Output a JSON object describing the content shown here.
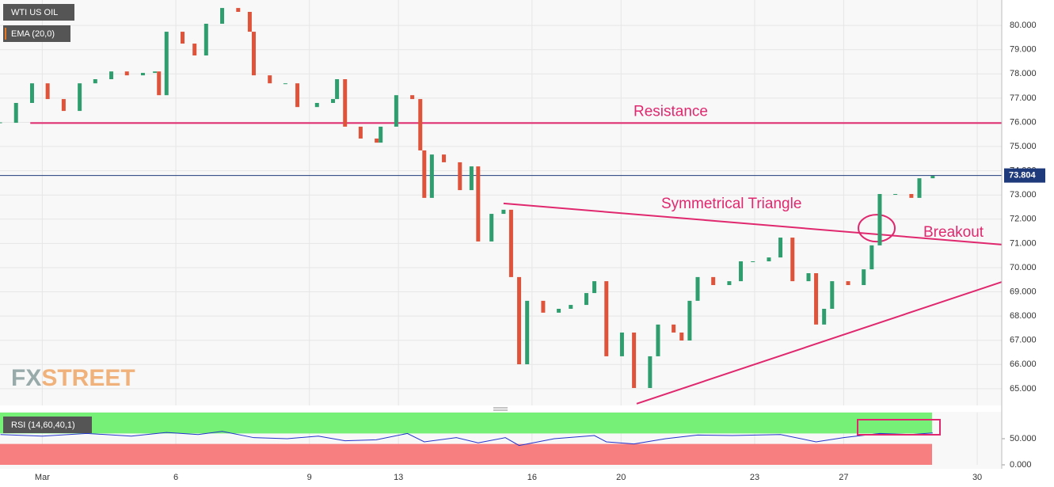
{
  "chart_data": {
    "type": "candlestick",
    "symbol": "WTI US OIL",
    "indicator": "EMA (20,0)",
    "brand": [
      "FX",
      "STREET"
    ],
    "x": [
      -0.94,
      -0.59,
      -0.23,
      0.12,
      0.48,
      0.84,
      1.19,
      1.55,
      1.9,
      2.26,
      2.53,
      2.62,
      2.79,
      3.15,
      3.42,
      3.68,
      4.04,
      4.4,
      4.66,
      4.75,
      5.11,
      5.46,
      5.73,
      6.17,
      6.53,
      6.62,
      6.8,
      7.15,
      7.51,
      7.6,
      7.95,
      8.31,
      8.49,
      8.58,
      8.75,
      9.02,
      9.38,
      9.64,
      9.79,
      10.09,
      10.36,
      10.53,
      10.71,
      10.89,
      11.25,
      11.6,
      11.87,
      12.22,
      12.4,
      12.67,
      13.02,
      13.29,
      13.65,
      13.83,
      14.18,
      14.36,
      14.54,
      14.72,
      15.07,
      15.43,
      15.69,
      15.96,
      16.32,
      16.58,
      16.85,
      17.21,
      17.38,
      17.56,
      17.74,
      18.1,
      18.45,
      18.63,
      18.81,
      19.16,
      19.52,
      19.7,
      20.0
    ],
    "close": [
      75.98,
      76.8,
      77.61,
      76.96,
      76.47,
      77.61,
      77.78,
      78.1,
      77.94,
      78.04,
      78.1,
      77.12,
      79.74,
      79.25,
      78.76,
      80.07,
      80.72,
      80.56,
      79.74,
      77.94,
      77.61,
      77.61,
      76.63,
      76.8,
      76.96,
      77.78,
      75.82,
      75.33,
      75.16,
      75.82,
      77.12,
      76.96,
      74.84,
      72.88,
      74.67,
      74.35,
      73.2,
      74.18,
      71.08,
      72.22,
      72.39,
      69.61,
      66.01,
      68.63,
      68.14,
      68.3,
      68.46,
      68.95,
      69.44,
      66.34,
      67.32,
      65.03,
      66.34,
      67.65,
      67.32,
      66.99,
      68.63,
      69.61,
      69.28,
      69.44,
      70.26,
      70.26,
      70.42,
      71.24,
      69.44,
      69.77,
      67.65,
      68.3,
      69.44,
      69.28,
      69.93,
      70.92,
      73.04,
      73.04,
      72.88,
      73.69,
      73.79
    ],
    "up_color": "#2e9e6e",
    "down_color": "#e0533b",
    "xlim": [
      -0.95,
      21.55
    ],
    "ylim": [
      64.31,
      81.05
    ],
    "xticks": [
      {
        "value": 0,
        "label": "Mar"
      },
      {
        "value": 3,
        "label": "6"
      },
      {
        "value": 6,
        "label": "9"
      },
      {
        "value": 8,
        "label": "13"
      },
      {
        "value": 11,
        "label": "16"
      },
      {
        "value": 13,
        "label": "20"
      },
      {
        "value": 16,
        "label": "23"
      },
      {
        "value": 18,
        "label": "27"
      },
      {
        "value": 21,
        "label": "30"
      }
    ],
    "yticks": [
      {
        "value": 65,
        "label": "65.000"
      },
      {
        "value": 66,
        "label": "66.000"
      },
      {
        "value": 67,
        "label": "67.000"
      },
      {
        "value": 68,
        "label": "68.000"
      },
      {
        "value": 69,
        "label": "69.000"
      },
      {
        "value": 70,
        "label": "70.000"
      },
      {
        "value": 71,
        "label": "71.000"
      },
      {
        "value": 72,
        "label": "72.000"
      },
      {
        "value": 73,
        "label": "73.000"
      },
      {
        "value": 74,
        "label": "74.000"
      },
      {
        "value": 75,
        "label": "75.000"
      },
      {
        "value": 76,
        "label": "76.000"
      },
      {
        "value": 77,
        "label": "77.000"
      },
      {
        "value": 78,
        "label": "78.000"
      },
      {
        "value": 79,
        "label": "79.000"
      },
      {
        "value": 80,
        "label": "80.000"
      }
    ],
    "grid": true,
    "last_price": {
      "value": 73.804,
      "label": "73.804"
    },
    "annotations": [
      {
        "text": "Resistance",
        "x": [
          -0.27,
          21.55
        ],
        "y": [
          75.97,
          75.97
        ]
      },
      {
        "text": "Symmetrical Triangle",
        "x": [
          10.36,
          21.55
        ],
        "y": [
          72.65,
          70.95
        ]
      },
      {
        "text": "Breakout",
        "x": [
          18.74
        ],
        "y": [
          71.63
        ]
      },
      {
        "x": [
          13.35,
          21.55
        ],
        "y": [
          64.38,
          69.41
        ]
      }
    ],
    "rsi": {
      "label": "RSI (14,60,40,1)",
      "ylim": [
        0,
        100
      ],
      "yticks": [
        {
          "value": 0,
          "label": "0.000"
        },
        {
          "value": 50,
          "label": "50.000"
        }
      ],
      "upper": 60,
      "lower": 40,
      "color": "#2233cc",
      "x": [
        -0.94,
        0,
        1,
        2,
        2.79,
        3.5,
        4.04,
        4.75,
        5.5,
        6.2,
        6.8,
        7.5,
        8.2,
        8.58,
        9.3,
        9.79,
        10.4,
        10.71,
        11.5,
        12.4,
        12.67,
        13.29,
        14,
        14.72,
        15.5,
        16.58,
        17.38,
        18,
        18.81,
        19.5,
        20.0
      ],
      "values": [
        58,
        55,
        60,
        55,
        62,
        58,
        64,
        52,
        50,
        55,
        46,
        48,
        60,
        44,
        52,
        42,
        52,
        37,
        50,
        56,
        44,
        40,
        50,
        57,
        56,
        58,
        44,
        52,
        60,
        58,
        61
      ]
    }
  }
}
